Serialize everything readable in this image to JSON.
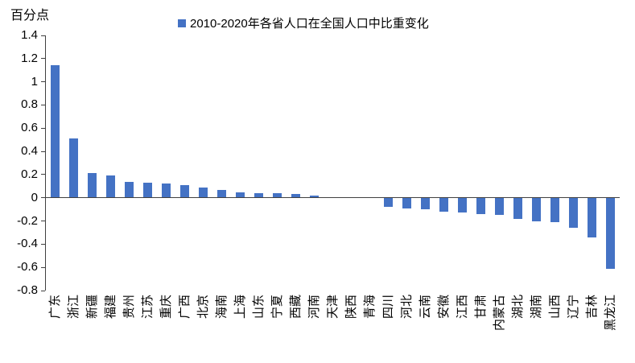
{
  "chart_data": {
    "type": "bar",
    "title": "",
    "unit_label": "百分点",
    "legend": "2010-2020年各省人口在全国人口中比重变化",
    "legend_position": "top",
    "grid": false,
    "bar_color": "#4472C4",
    "axis_color": "#404040",
    "ylim": [
      -0.8,
      1.4
    ],
    "y_tick_labels": [
      "1.4",
      "1.2",
      "1",
      "0.8",
      "0.6",
      "0.4",
      "0.2",
      "0",
      "-0.2",
      "-0.4",
      "-0.6",
      "-0.8"
    ],
    "y_tick_values": [
      1.4,
      1.2,
      1.0,
      0.8,
      0.6,
      0.4,
      0.2,
      0.0,
      -0.2,
      -0.4,
      -0.6,
      -0.8
    ],
    "categories": [
      "广东",
      "浙江",
      "新疆",
      "福建",
      "贵州",
      "江苏",
      "重庆",
      "广西",
      "北京",
      "海南",
      "上海",
      "山东",
      "宁夏",
      "西藏",
      "河南",
      "天津",
      "陕西",
      "青海",
      "四川",
      "河北",
      "云南",
      "安徽",
      "江西",
      "甘肃",
      "内蒙古",
      "湖北",
      "湖南",
      "山西",
      "辽宁",
      "吉林",
      "黑龙江"
    ],
    "values": [
      1.14,
      0.51,
      0.21,
      0.19,
      0.14,
      0.13,
      0.12,
      0.11,
      0.09,
      0.07,
      0.05,
      0.04,
      0.04,
      0.03,
      0.02,
      0.0,
      0.0,
      0.0,
      -0.08,
      -0.09,
      -0.1,
      -0.12,
      -0.13,
      -0.14,
      -0.15,
      -0.18,
      -0.2,
      -0.21,
      -0.26,
      -0.34,
      -0.61
    ]
  }
}
